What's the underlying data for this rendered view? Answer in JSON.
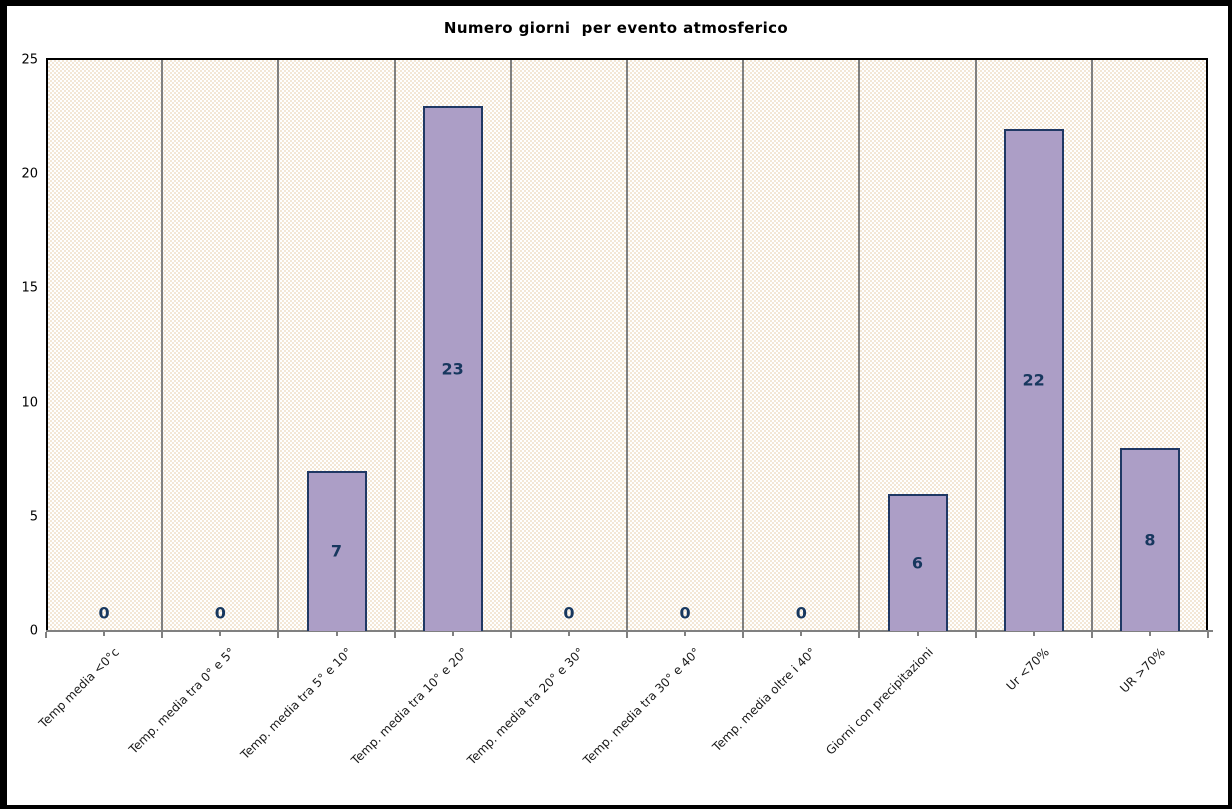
{
  "chart_data": {
    "type": "bar",
    "title": "Numero giorni  per evento atmosferico",
    "categories": [
      "Temp media <0°c",
      "Temp. media tra 0° e 5°",
      "Temp. media tra 5° e 10°",
      "Temp. media tra 10° e 20°",
      "Temp. media tra 20° e 30°",
      "Temp. media tra 30° e 40°",
      "Temp. media oltre i 40°",
      "Giorni con precipitazioni",
      "Ur  <70%",
      "UR >70%"
    ],
    "values": [
      0,
      0,
      7,
      23,
      0,
      0,
      0,
      6,
      22,
      8
    ],
    "xlabel": "",
    "ylabel": "",
    "ylim": [
      0,
      25
    ],
    "yticks": [
      0,
      5,
      10,
      15,
      20,
      25
    ],
    "grid": "vertical-category-separators",
    "legend": "none",
    "data_labels": "inside-center",
    "colors": {
      "bar_fill": "#AC9EC6",
      "bar_border": "#1F3864",
      "data_label": "#17375E",
      "plot_background": "#F8F0E3",
      "gridline": "#808080",
      "title_text": "#000000",
      "axis_text": "#1A1A1A",
      "outer_border": "#000000"
    }
  }
}
